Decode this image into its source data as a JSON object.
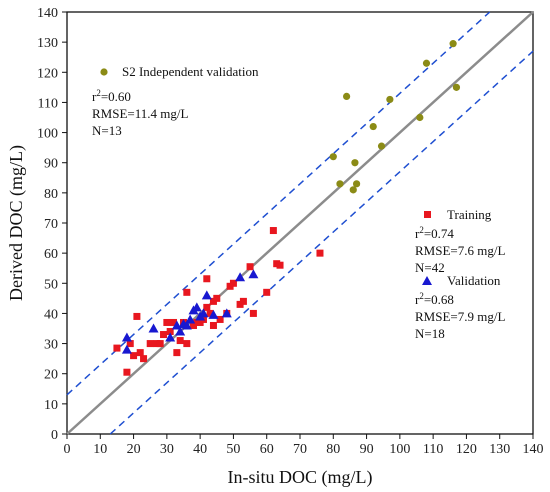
{
  "chart_data": {
    "type": "scatter",
    "xlabel": "In-situ DOC (mg/L)",
    "ylabel": "Derived DOC (mg/L)",
    "xlim": [
      0,
      140
    ],
    "ylim": [
      0,
      140
    ],
    "xticks": [
      "0",
      "10",
      "20",
      "30",
      "40",
      "50",
      "60",
      "70",
      "80",
      "90",
      "100",
      "110",
      "120",
      "130",
      "140"
    ],
    "yticks": [
      "0",
      "10",
      "20",
      "30",
      "40",
      "50",
      "60",
      "70",
      "80",
      "90",
      "100",
      "110",
      "120",
      "130",
      "140"
    ],
    "grid": false,
    "reference_lines": [
      {
        "kind": "1:1",
        "slope": 1,
        "intercept": 0,
        "style": "solid",
        "color": "#8c8c8c"
      },
      {
        "kind": "upper-bound",
        "slope": 1,
        "intercept": 13,
        "style": "dashed",
        "color": "#1f4fd1"
      },
      {
        "kind": "lower-bound",
        "slope": 1,
        "intercept": -13,
        "style": "dashed",
        "color": "#1f4fd1"
      }
    ],
    "series": [
      {
        "name": "S2 Independent validation",
        "marker": "circle",
        "color": "#8b8b16",
        "stats": [
          "r2=0.60",
          "RMSE=11.4 mg/L",
          "N=13"
        ],
        "points": [
          [
            80,
            92
          ],
          [
            82,
            83
          ],
          [
            84,
            112
          ],
          [
            86,
            81
          ],
          [
            86.5,
            90
          ],
          [
            87,
            83
          ],
          [
            92,
            102
          ],
          [
            94.5,
            95.5
          ],
          [
            97,
            111
          ],
          [
            106,
            105
          ],
          [
            108,
            123
          ],
          [
            116,
            129.5
          ],
          [
            117,
            115
          ]
        ]
      },
      {
        "name": "Training",
        "marker": "square",
        "color": "#e8171f",
        "stats": [
          "r2=0.74",
          "RMSE=7.6 mg/L",
          "N=42"
        ],
        "points": [
          [
            15,
            28.5
          ],
          [
            18,
            20.5
          ],
          [
            19,
            30
          ],
          [
            20,
            26
          ],
          [
            21,
            39
          ],
          [
            22,
            27
          ],
          [
            23,
            25
          ],
          [
            25,
            30
          ],
          [
            27,
            30
          ],
          [
            28,
            30
          ],
          [
            29,
            33
          ],
          [
            30,
            37
          ],
          [
            31,
            34
          ],
          [
            32,
            37
          ],
          [
            33,
            27
          ],
          [
            34,
            31
          ],
          [
            35,
            37
          ],
          [
            36,
            30
          ],
          [
            36,
            47
          ],
          [
            38,
            36
          ],
          [
            39,
            37
          ],
          [
            40,
            37
          ],
          [
            41,
            38
          ],
          [
            42,
            42
          ],
          [
            42,
            51.5
          ],
          [
            43,
            40
          ],
          [
            44,
            44
          ],
          [
            44,
            36
          ],
          [
            45,
            45
          ],
          [
            46,
            38
          ],
          [
            48,
            40
          ],
          [
            49,
            49
          ],
          [
            50,
            50
          ],
          [
            52,
            43
          ],
          [
            53,
            44
          ],
          [
            55,
            55.5
          ],
          [
            56,
            40
          ],
          [
            60,
            47
          ],
          [
            62,
            67.5
          ],
          [
            63,
            56.5
          ],
          [
            64,
            56
          ],
          [
            76,
            60
          ]
        ]
      },
      {
        "name": "Validation",
        "marker": "triangle",
        "color": "#1818d0",
        "stats": [
          "r2=0.68",
          "RMSE=7.9 mg/L",
          "N=18"
        ],
        "points": [
          [
            18,
            28
          ],
          [
            18,
            32
          ],
          [
            26,
            35
          ],
          [
            31,
            32
          ],
          [
            33,
            36
          ],
          [
            34,
            34
          ],
          [
            35,
            36.5
          ],
          [
            36,
            36
          ],
          [
            37,
            38
          ],
          [
            38,
            41
          ],
          [
            39,
            42
          ],
          [
            40,
            39
          ],
          [
            41,
            40
          ],
          [
            42,
            46
          ],
          [
            44,
            39.5
          ],
          [
            48,
            40
          ],
          [
            52,
            52
          ],
          [
            56,
            53
          ]
        ]
      }
    ]
  }
}
